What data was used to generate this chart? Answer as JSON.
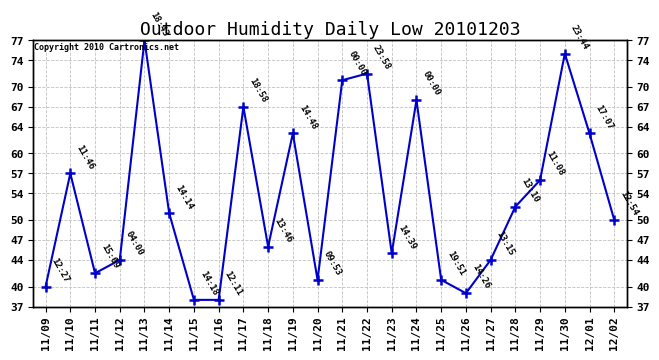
{
  "title": "Outdoor Humidity Daily Low 20101203",
  "copyright": "Copyright 2010 Cartronics.net",
  "x_labels": [
    "11/09",
    "11/10",
    "11/11",
    "11/12",
    "11/13",
    "11/14",
    "11/15",
    "11/16",
    "11/17",
    "11/18",
    "11/19",
    "11/20",
    "11/21",
    "11/22",
    "11/23",
    "11/24",
    "11/25",
    "11/26",
    "11/27",
    "11/28",
    "11/29",
    "11/30",
    "12/01",
    "12/02"
  ],
  "y_values": [
    40,
    57,
    42,
    44,
    77,
    51,
    38,
    38,
    67,
    46,
    63,
    41,
    71,
    72,
    45,
    68,
    41,
    39,
    44,
    52,
    56,
    75,
    63,
    50
  ],
  "time_labels": [
    "12:27",
    "11:46",
    "15:09",
    "04:00",
    "18:43",
    "14:14",
    "14:18",
    "12:11",
    "18:58",
    "13:46",
    "14:48",
    "09:53",
    "00:00",
    "23:58",
    "14:39",
    "00:00",
    "19:51",
    "14:26",
    "13:15",
    "13:10",
    "11:08",
    "23:44",
    "17:07",
    "12:54"
  ],
  "line_color": "#0000cc",
  "marker_color": "#0000cc",
  "background_color": "#ffffff",
  "grid_color": "#c0c0c0",
  "ylim": [
    37,
    77
  ],
  "yticks": [
    37,
    40,
    44,
    47,
    50,
    54,
    57,
    60,
    64,
    67,
    70,
    74,
    77
  ],
  "title_fontsize": 13,
  "tick_fontsize": 8,
  "annot_fontsize": 6.5,
  "copyright_fontsize": 6
}
